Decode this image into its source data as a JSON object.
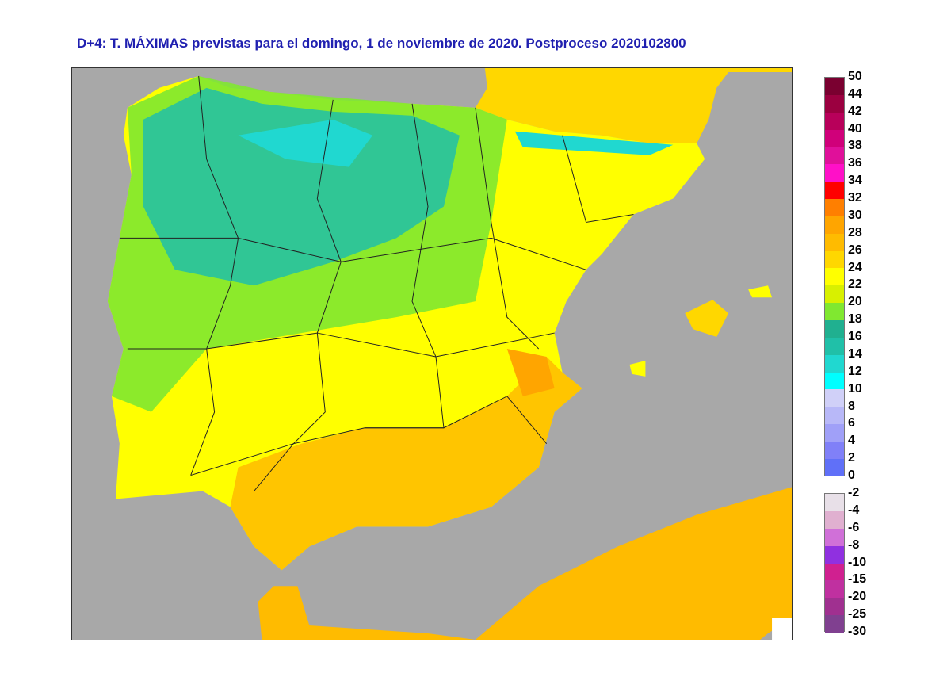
{
  "title": "D+4: T. MÁXIMAS previstas para el domingo, 1 de noviembre de 2020. Postproceso 2020102800",
  "legend_upper": {
    "labels": [
      "50",
      "44",
      "42",
      "40",
      "38",
      "36",
      "34",
      "32",
      "30",
      "28",
      "26",
      "24",
      "22",
      "20",
      "18",
      "16",
      "14",
      "12",
      "10",
      "8",
      "6",
      "4",
      "2",
      "0"
    ],
    "colors": [
      "#7a0030",
      "#9b0040",
      "#b8005a",
      "#d0007a",
      "#e0109a",
      "#ff10c8",
      "#ff0000",
      "#ff7f00",
      "#ffa500",
      "#ffbb00",
      "#ffd700",
      "#ffff00",
      "#d8f000",
      "#80e830",
      "#20b090",
      "#20c0a8",
      "#20d8d0",
      "#00ffff",
      "#d0d0f8",
      "#b8b8f8",
      "#a0a0f8",
      "#8080f8",
      "#6070f8"
    ]
  },
  "legend_lower": {
    "labels": [
      "-2",
      "-4",
      "-6",
      "-8",
      "-10",
      "-15",
      "-20",
      "-25",
      "-30"
    ],
    "colors": [
      "#e8e0e8",
      "#e0b0d0",
      "#d070d8",
      "#9030e0",
      "#d02090",
      "#c030a0",
      "#a03090",
      "#804090"
    ]
  },
  "colors": {
    "sea": "#a8a8a8",
    "title": "#2020b0"
  }
}
